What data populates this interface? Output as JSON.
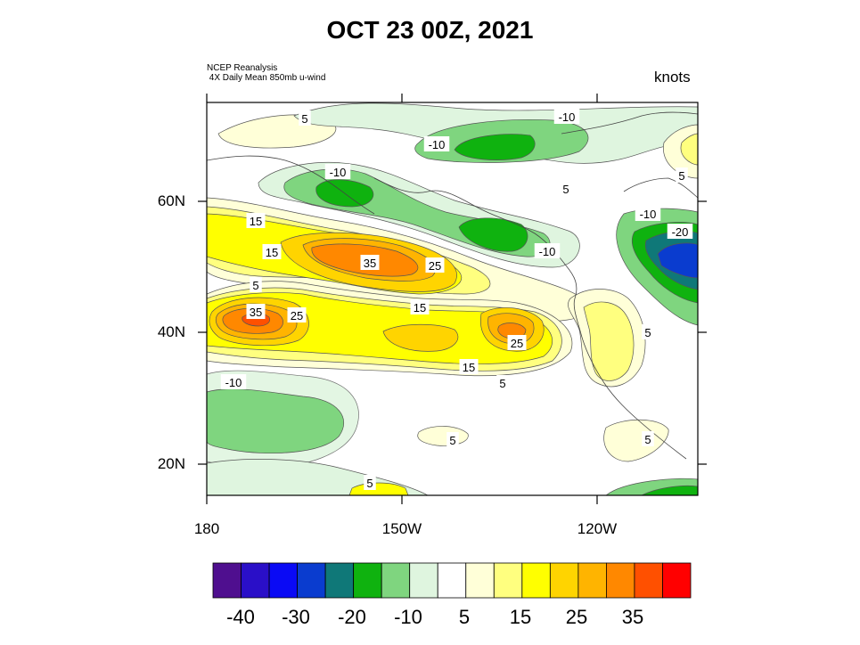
{
  "title": "OCT 23 00Z, 2021",
  "source": {
    "line1": "NCEP Reanalysis",
    "line2": " 4X Daily Mean 850mb u-wind"
  },
  "units": "knots",
  "axes": {
    "y_ticks": [
      "60N",
      "40N",
      "20N"
    ],
    "x_ticks": [
      "180",
      "150W",
      "120W"
    ]
  },
  "contour_labels": [
    "5",
    "-10",
    "-10",
    "-10",
    "5",
    "5",
    "15",
    "15",
    "35",
    "25",
    "-10",
    "-10",
    "-20",
    "5",
    "35",
    "25",
    "15",
    "25",
    "5",
    "15",
    "5",
    "-10",
    "5",
    "5",
    "5"
  ],
  "colorbar": {
    "colors": [
      "#4f0f8f",
      "#2a0fc8",
      "#0a0af5",
      "#0a3ccf",
      "#0f7878",
      "#0fb20f",
      "#7fd57f",
      "#dff5df",
      "#ffffff",
      "#ffffd8",
      "#ffff7f",
      "#ffff00",
      "#ffd400",
      "#ffb400",
      "#ff8800",
      "#ff5000",
      "#ff0000"
    ],
    "labels": [
      "-40",
      "-30",
      "-20",
      "-10",
      "5",
      "15",
      "25",
      "35"
    ]
  }
}
